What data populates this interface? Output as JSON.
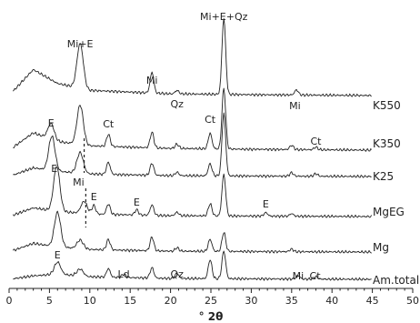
{
  "chart_data": {
    "type": "line",
    "xlabel": "° 2θ",
    "ylabel": "",
    "xlim": [
      0,
      50
    ],
    "xticks": [
      0,
      5,
      10,
      15,
      20,
      25,
      30,
      35,
      40,
      45,
      50
    ],
    "grid": false,
    "legend": "none",
    "series": [
      {
        "name": "K550",
        "peaks": [
          [
            8.8,
            52
          ],
          [
            17.7,
            24
          ],
          [
            20.8,
            4
          ],
          [
            26.6,
            88
          ],
          [
            35.6,
            6
          ]
        ],
        "baseline": [
          [
            0,
            0
          ],
          [
            3,
            30
          ],
          [
            6,
            14
          ],
          [
            10,
            6
          ],
          [
            20,
            2
          ],
          [
            30,
            1
          ],
          [
            45,
            0
          ]
        ]
      },
      {
        "name": "K350",
        "peaks": [
          [
            5.2,
            18
          ],
          [
            8.8,
            46
          ],
          [
            12.3,
            14
          ],
          [
            17.7,
            18
          ],
          [
            20.8,
            5
          ],
          [
            24.9,
            18
          ],
          [
            26.6,
            70
          ],
          [
            35.0,
            5
          ],
          [
            38.0,
            3
          ]
        ],
        "baseline": [
          [
            0,
            0
          ],
          [
            3,
            20
          ],
          [
            6,
            10
          ],
          [
            10,
            5
          ],
          [
            20,
            2
          ],
          [
            30,
            1
          ],
          [
            45,
            0
          ]
        ]
      },
      {
        "name": "K25",
        "peaks": [
          [
            5.3,
            40
          ],
          [
            8.8,
            24
          ],
          [
            12.3,
            14
          ],
          [
            17.7,
            14
          ],
          [
            20.8,
            4
          ],
          [
            24.9,
            14
          ],
          [
            26.6,
            72
          ],
          [
            35.0,
            4
          ],
          [
            38.0,
            3
          ]
        ],
        "baseline": [
          [
            0,
            0
          ],
          [
            3,
            10
          ],
          [
            6,
            6
          ],
          [
            10,
            3
          ],
          [
            20,
            1
          ],
          [
            45,
            0
          ]
        ]
      },
      {
        "name": "MgEG",
        "peaks": [
          [
            5.9,
            52
          ],
          [
            9.3,
            14
          ],
          [
            10.5,
            10
          ],
          [
            12.3,
            12
          ],
          [
            15.8,
            6
          ],
          [
            17.7,
            12
          ],
          [
            20.8,
            4
          ],
          [
            24.9,
            14
          ],
          [
            26.6,
            48
          ],
          [
            31.8,
            4
          ],
          [
            35.0,
            3
          ]
        ],
        "baseline": [
          [
            0,
            0
          ],
          [
            3,
            10
          ],
          [
            6,
            6
          ],
          [
            10,
            3
          ],
          [
            20,
            1
          ],
          [
            45,
            0
          ]
        ]
      },
      {
        "name": "Mg",
        "peaks": [
          [
            6.0,
            40
          ],
          [
            8.8,
            10
          ],
          [
            12.3,
            12
          ],
          [
            17.7,
            16
          ],
          [
            20.8,
            4
          ],
          [
            24.9,
            14
          ],
          [
            26.6,
            22
          ],
          [
            35.0,
            3
          ]
        ],
        "baseline": [
          [
            0,
            0
          ],
          [
            3,
            10
          ],
          [
            6,
            6
          ],
          [
            10,
            3
          ],
          [
            20,
            1
          ],
          [
            45,
            0
          ]
        ]
      },
      {
        "name": "Am.total",
        "peaks": [
          [
            6.0,
            14
          ],
          [
            8.8,
            8
          ],
          [
            12.3,
            10
          ],
          [
            14.2,
            4
          ],
          [
            17.7,
            12
          ],
          [
            20.8,
            6
          ],
          [
            24.9,
            22
          ],
          [
            26.6,
            32
          ],
          [
            35.8,
            4
          ],
          [
            38.0,
            3
          ]
        ],
        "baseline": [
          [
            0,
            0
          ],
          [
            3,
            4
          ],
          [
            6,
            6
          ],
          [
            10,
            3
          ],
          [
            20,
            1
          ],
          [
            45,
            0
          ]
        ]
      }
    ],
    "annotations": [
      {
        "text": "Mi+E",
        "x": 8.8
      },
      {
        "text": "Mi+E+Qz",
        "x": 26.6
      },
      {
        "text": "Mi",
        "x": 17.7
      },
      {
        "text": "Qz",
        "x": 20.8
      },
      {
        "text": "Mi",
        "x": 35.4
      },
      {
        "text": "E",
        "x": 5.2
      },
      {
        "text": "Ct",
        "x": 12.3
      },
      {
        "text": "Ct",
        "x": 24.9
      },
      {
        "text": "Ct",
        "x": 38.0
      },
      {
        "text": "E",
        "x": 5.6
      },
      {
        "text": "Mi",
        "x": 8.6
      },
      {
        "text": "E",
        "x": 10.5
      },
      {
        "text": "E",
        "x": 15.8
      },
      {
        "text": "E",
        "x": 31.8
      },
      {
        "text": "E",
        "x": 6.0
      },
      {
        "text": "Ld",
        "x": 14.2
      },
      {
        "text": "Qz",
        "x": 20.8
      },
      {
        "text": "Mi",
        "x": 35.8
      },
      {
        "text": "Ct",
        "x": 37.9
      }
    ]
  }
}
